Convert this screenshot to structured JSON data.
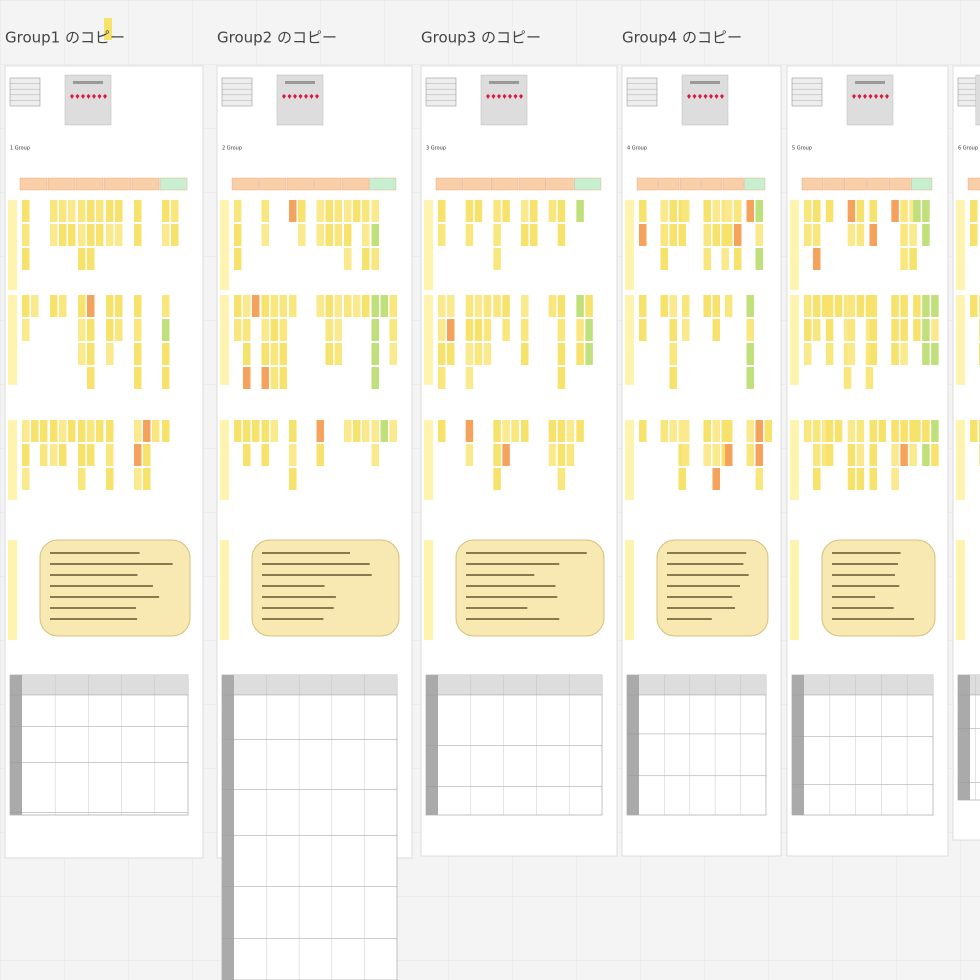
{
  "frames": [
    {
      "title": "Group1 のコピー",
      "label": "1 Group"
    },
    {
      "title": "Group2 のコピー",
      "label": "2 Group"
    },
    {
      "title": "Group3 のコピー",
      "label": "3 Group"
    },
    {
      "title": "Group4 のコピー",
      "label": "4 Group"
    },
    {
      "label": "5 Group"
    },
    {
      "label": "6 Group"
    }
  ]
}
